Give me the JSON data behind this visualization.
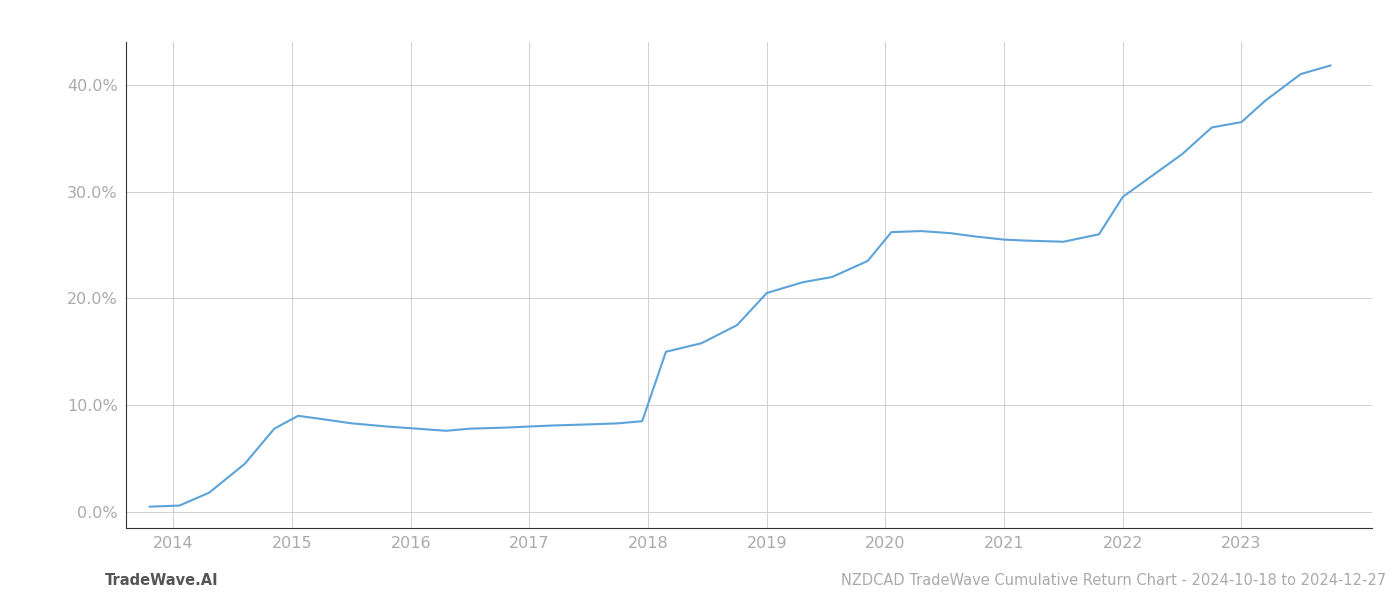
{
  "x_values": [
    2013.8,
    2014.05,
    2014.3,
    2014.6,
    2014.85,
    2015.05,
    2015.25,
    2015.5,
    2015.8,
    2016.05,
    2016.3,
    2016.5,
    2016.8,
    2017.0,
    2017.2,
    2017.5,
    2017.75,
    2017.95,
    2018.15,
    2018.45,
    2018.75,
    2019.0,
    2019.3,
    2019.55,
    2019.85,
    2020.05,
    2020.3,
    2020.55,
    2020.75,
    2021.0,
    2021.2,
    2021.5,
    2021.8,
    2022.0,
    2022.25,
    2022.5,
    2022.75,
    2023.0,
    2023.2,
    2023.5,
    2023.75
  ],
  "y_values": [
    0.5,
    0.6,
    1.8,
    4.5,
    7.8,
    9.0,
    8.7,
    8.3,
    8.0,
    7.8,
    7.6,
    7.8,
    7.9,
    8.0,
    8.1,
    8.2,
    8.3,
    8.5,
    15.0,
    15.8,
    17.5,
    20.5,
    21.5,
    22.0,
    23.5,
    26.2,
    26.3,
    26.1,
    25.8,
    25.5,
    25.4,
    25.3,
    26.0,
    29.5,
    31.5,
    33.5,
    36.0,
    36.5,
    38.5,
    41.0,
    41.8
  ],
  "line_color": "#5ba3d9",
  "line_width": 1.5,
  "background_color": "#ffffff",
  "grid_color": "#d0d0d0",
  "ytick_labels": [
    "0.0%",
    "10.0%",
    "20.0%",
    "30.0%",
    "40.0%"
  ],
  "ytick_values": [
    0,
    10,
    20,
    30,
    40
  ],
  "xtick_labels": [
    "2014",
    "2015",
    "2016",
    "2017",
    "2018",
    "2019",
    "2020",
    "2021",
    "2022",
    "2023"
  ],
  "xtick_values": [
    2014,
    2015,
    2016,
    2017,
    2018,
    2019,
    2020,
    2021,
    2022,
    2023
  ],
  "xlim": [
    2013.6,
    2024.1
  ],
  "ylim": [
    -1.5,
    44
  ],
  "footer_left": "TradeWave.AI",
  "footer_right": "NZDCAD TradeWave Cumulative Return Chart - 2024-10-18 to 2024-12-27",
  "footer_fontsize": 10.5,
  "tick_fontsize": 11.5,
  "axis_label_color": "#aaaaaa",
  "left_spine_color": "#333333",
  "bottom_spine_color": "#333333"
}
